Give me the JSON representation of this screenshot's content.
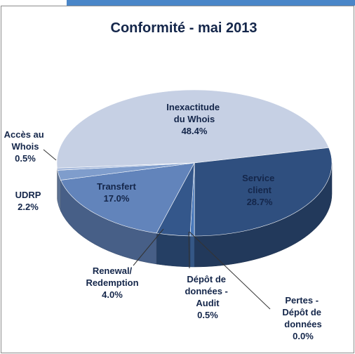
{
  "chart_data": {
    "type": "pie",
    "title": "Conformité - mai 2013",
    "categories": [
      "Inexactitude du Whois",
      "Service client",
      "Pertes - Dépôt de données",
      "Dépôt de données - Audit",
      "Renewal/Redemption",
      "Transfert",
      "UDRP",
      "Accès au Whois"
    ],
    "values": [
      48.4,
      28.7,
      0.0,
      0.5,
      4.0,
      17.0,
      2.2,
      0.5
    ],
    "value_labels": [
      "48.4%",
      "28.7%",
      "0.0%",
      "0.5%",
      "4.0%",
      "17.0%",
      "2.2%",
      "0.5%"
    ],
    "colors": [
      "#c6d0e4",
      "#2f4f7f",
      "#3e5f90",
      "#4a79ba",
      "#34578b",
      "#6284bb",
      "#7f9dcc",
      "#a9bbdc"
    ]
  }
}
